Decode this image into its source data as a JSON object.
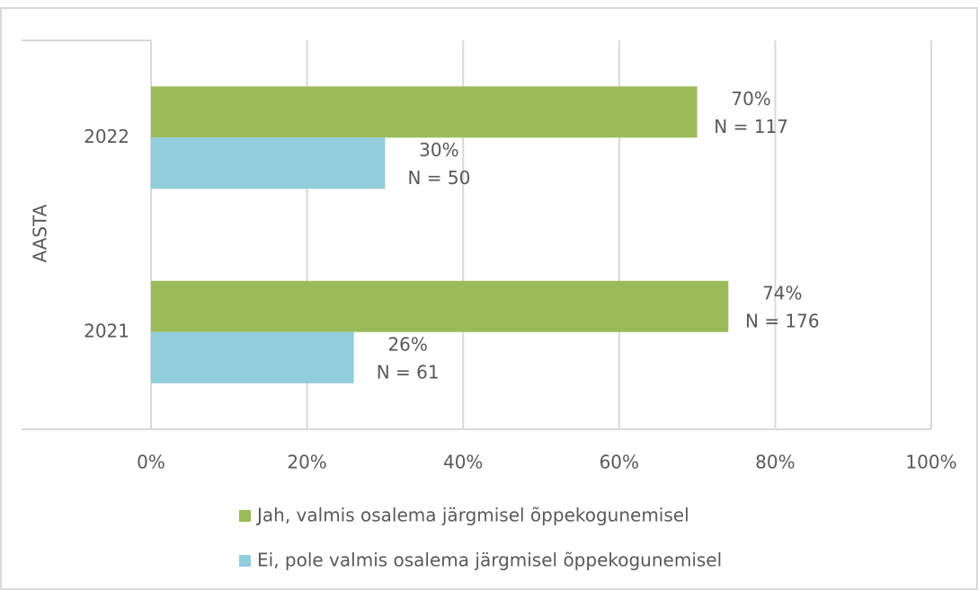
{
  "chart_data": {
    "type": "hbar",
    "y_label": "AASTA",
    "categories": [
      "2022",
      "2021"
    ],
    "series": [
      {
        "name": "Jah, valmis osalema järgmisel õppekogunemisel",
        "color": "#9bbb59",
        "values": [
          70,
          74
        ],
        "value_labels": [
          "70%",
          "74%"
        ],
        "count_labels": [
          "N = 117",
          "N = 176"
        ]
      },
      {
        "name": "Ei, pole valmis osalema järgmisel õppekogunemisel",
        "color": "#92cddc",
        "values": [
          30,
          26
        ],
        "value_labels": [
          "30%",
          "26%"
        ],
        "count_labels": [
          "N = 50",
          "N = 61"
        ]
      }
    ],
    "xlim": [
      0,
      100
    ],
    "xticks": [
      {
        "value": 0,
        "label": "0%"
      },
      {
        "value": 20,
        "label": "20%"
      },
      {
        "value": 40,
        "label": "40%"
      },
      {
        "value": 60,
        "label": "60%"
      },
      {
        "value": 80,
        "label": "80%"
      },
      {
        "value": 100,
        "label": "100%"
      }
    ],
    "grid": true,
    "legend": "bottom"
  }
}
